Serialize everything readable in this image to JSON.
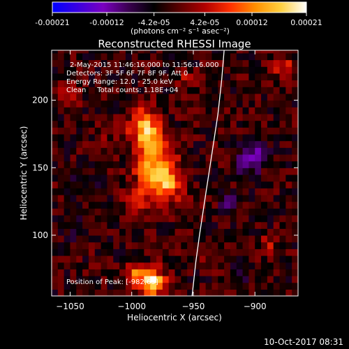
{
  "chart_data": {
    "type": "heatmap",
    "title": "Reconstructed RHESSI Image",
    "colorbar": {
      "ticks": [
        "-0.00021",
        "-0.00012",
        "-4.2e-05",
        "4.2e-05",
        "0.00012",
        "0.00021"
      ],
      "tick_values": [
        -0.00021,
        -0.00012,
        -4.2e-05,
        4.2e-05,
        0.00012,
        0.00021
      ],
      "range": [
        -0.00021,
        0.00021
      ],
      "unit_label": "(photons cm⁻² s⁻¹ asec⁻²)",
      "colormap": [
        "#0000ff",
        "#3a00e0",
        "#7a00c0",
        "#3a0050",
        "#000000",
        "#5a0000",
        "#b00000",
        "#ff3000",
        "#ff9000",
        "#ffd040",
        "#ffffff"
      ]
    },
    "xlabel": "Heliocentric X (arcsec)",
    "ylabel": "Heliocentric Y (arcsec)",
    "xlim": [
      -1065,
      -865
    ],
    "ylim": [
      55,
      237
    ],
    "xticks": [
      -1050,
      -1000,
      -950,
      -900
    ],
    "xtick_labels": [
      "−1050",
      "−1000",
      "−950",
      "−900"
    ],
    "yticks": [
      100,
      150,
      200
    ],
    "ytick_labels": [
      "100",
      "150",
      "200"
    ],
    "annotations": [
      "2-May-2015 11:46:16.000 to 11:56:16.000",
      "Detectors: 3F 5F 6F 7F 8F 9F, Att 0",
      "Energy Range: 12.0 - 25.0 keV",
      "Clean     Total counts: 1.18E+04"
    ],
    "peak": {
      "label": "Position of Peak: [-982,65]",
      "x": -982,
      "y": 65
    },
    "limb_curve": [
      [
        -951,
        55
      ],
      [
        -948,
        80
      ],
      [
        -945,
        100
      ],
      [
        -940,
        130
      ],
      [
        -935,
        160
      ],
      [
        -930,
        190
      ],
      [
        -927,
        215
      ],
      [
        -925,
        237
      ]
    ],
    "hot_spots": [
      {
        "x": -990,
        "y": 183,
        "v": 0.00014,
        "r": 12
      },
      {
        "x": -985,
        "y": 168,
        "v": 0.00012,
        "r": 14
      },
      {
        "x": -980,
        "y": 148,
        "v": 0.00015,
        "r": 16
      },
      {
        "x": -970,
        "y": 135,
        "v": 0.0001,
        "r": 12
      },
      {
        "x": -995,
        "y": 125,
        "v": 7e-05,
        "r": 10
      },
      {
        "x": -983,
        "y": 65,
        "v": 0.00021,
        "r": 10
      },
      {
        "x": -998,
        "y": 72,
        "v": 0.00012,
        "r": 8
      },
      {
        "x": -1050,
        "y": 205,
        "v": 6e-05,
        "r": 8
      },
      {
        "x": -1020,
        "y": 178,
        "v": 4e-05,
        "r": 8
      },
      {
        "x": -877,
        "y": 225,
        "v": 9e-05,
        "r": 7
      },
      {
        "x": -955,
        "y": 215,
        "v": 5e-05,
        "r": 8
      },
      {
        "x": -940,
        "y": 90,
        "v": 4e-05,
        "r": 7
      },
      {
        "x": -888,
        "y": 95,
        "v": 6e-05,
        "r": 7
      }
    ],
    "cold_spots": [
      {
        "x": -905,
        "y": 155,
        "v": -9e-05,
        "r": 10
      },
      {
        "x": -898,
        "y": 165,
        "v": -7e-05,
        "r": 8
      },
      {
        "x": -920,
        "y": 125,
        "v": -6e-05,
        "r": 8
      },
      {
        "x": -1045,
        "y": 105,
        "v": -6e-05,
        "r": 9
      },
      {
        "x": -1038,
        "y": 140,
        "v": -5e-05,
        "r": 8
      },
      {
        "x": -910,
        "y": 70,
        "v": -4e-05,
        "r": 8
      }
    ]
  },
  "footer": {
    "timestamp": "10-Oct-2017 08:31"
  }
}
